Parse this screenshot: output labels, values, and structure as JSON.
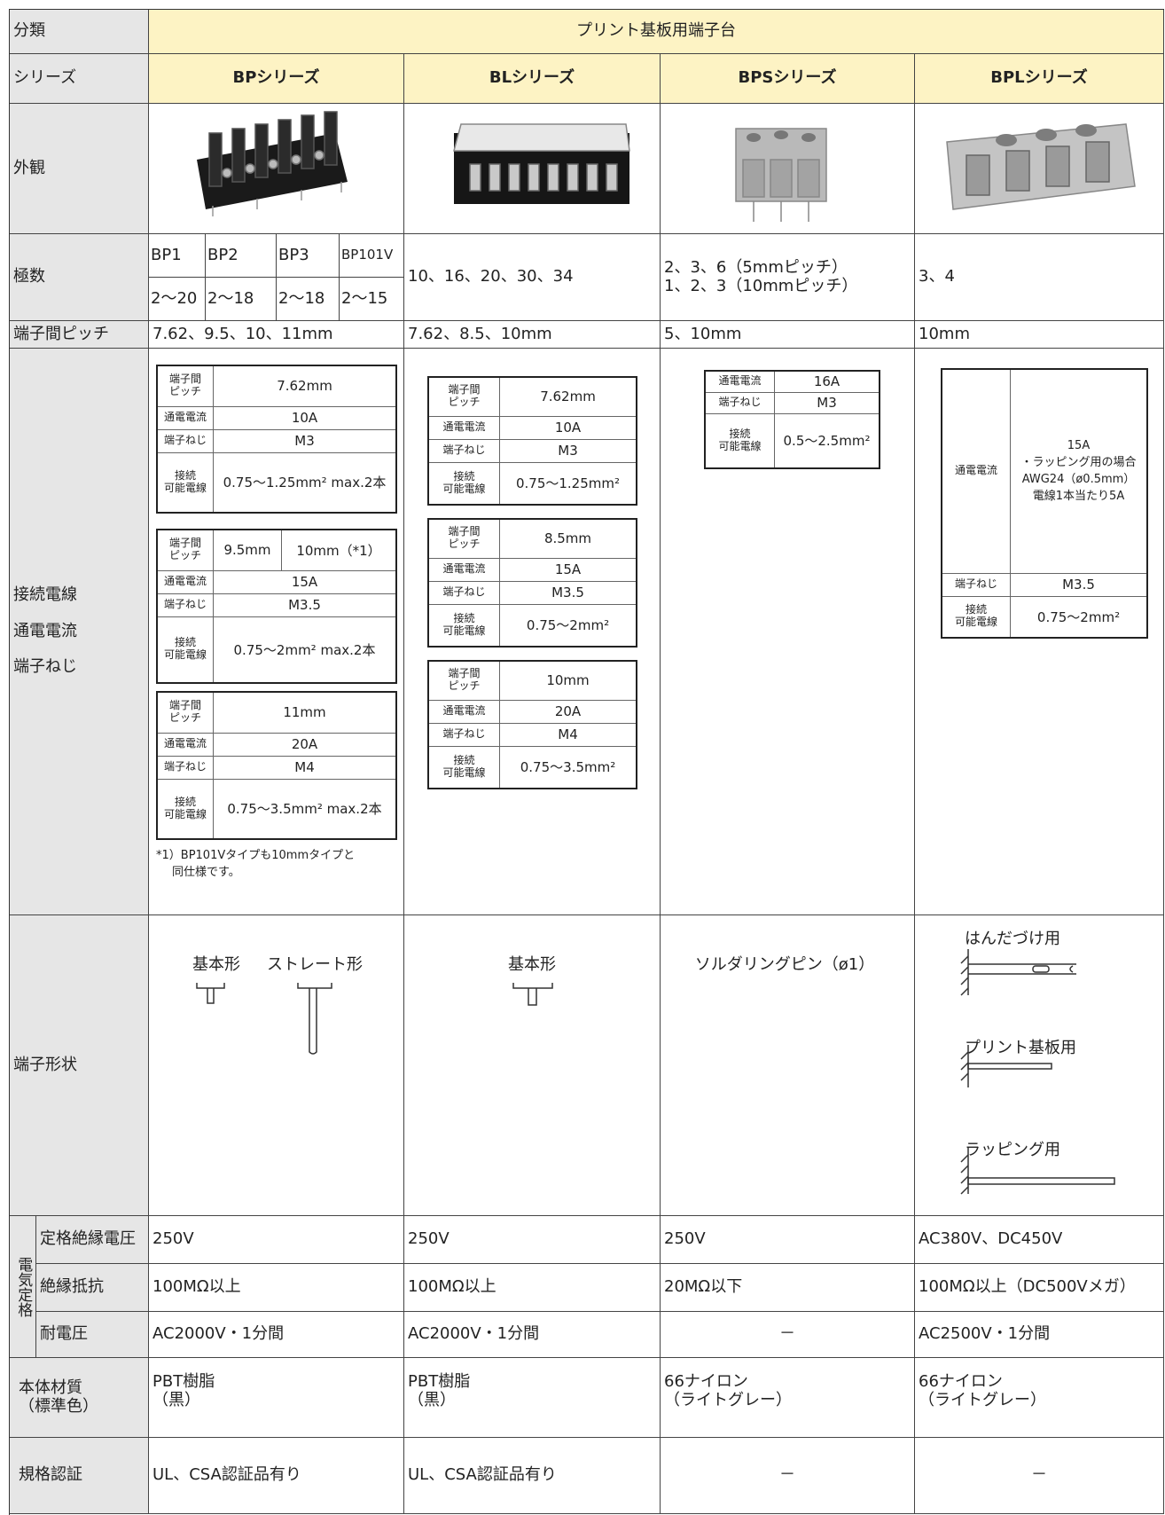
{
  "classification": {
    "label": "分類",
    "value": "プリント基板用端子台"
  },
  "series_row": {
    "label": "シリーズ",
    "values": [
      "BPシリーズ",
      "BLシリーズ",
      "BPSシリーズ",
      "BPLシリーズ"
    ]
  },
  "appearance": {
    "label": "外観"
  },
  "poles": {
    "label": "極数",
    "bp_types": [
      {
        "name": "BP1",
        "range": "2〜20"
      },
      {
        "name": "BP2",
        "range": "2〜18"
      },
      {
        "name": "BP3",
        "range": "2〜18"
      },
      {
        "name": "BP101V",
        "range": "2〜15"
      }
    ],
    "bl": "10、16、20、30、34",
    "bps": [
      "2、3、6（5mmピッチ）",
      "1、2、3（10mmピッチ）"
    ],
    "bpl": "3、4"
  },
  "pitch": {
    "label": "端子間ピッチ",
    "values": [
      "7.62、9.5、10、11mm",
      "7.62、8.5、10mm",
      "5、10mm",
      "10mm"
    ]
  },
  "spec_labels": {
    "pitch": [
      "端子間",
      "ピッチ"
    ],
    "current": "通電電流",
    "screw": "端子ねじ",
    "wire": [
      "接続",
      "可能電線"
    ]
  },
  "wiring": {
    "labels": [
      "接続電線",
      "通電電流",
      "端子ねじ"
    ],
    "bp": [
      {
        "pitch": "7.62mm",
        "current": "10A",
        "screw": "M3",
        "wire": "0.75〜1.25mm² max.2本"
      },
      {
        "pitch": [
          "9.5mm",
          "10mm（*1）"
        ],
        "current": "15A",
        "screw": "M3.5",
        "wire": "0.75〜2mm² max.2本"
      },
      {
        "pitch": "11mm",
        "current": "20A",
        "screw": "M4",
        "wire": "0.75〜3.5mm² max.2本"
      }
    ],
    "bp_note": [
      "*1）BP101Vタイプも10mmタイプと",
      "同仕様です。"
    ],
    "bl": [
      {
        "pitch": "7.62mm",
        "current": "10A",
        "screw": "M3",
        "wire": "0.75〜1.25mm²"
      },
      {
        "pitch": "8.5mm",
        "current": "15A",
        "screw": "M3.5",
        "wire": "0.75〜2mm²"
      },
      {
        "pitch": "10mm",
        "current": "20A",
        "screw": "M4",
        "wire": "0.75〜3.5mm²"
      }
    ],
    "bps": {
      "current": "16A",
      "screw": "M3",
      "wire": "0.5〜2.5mm²"
    },
    "bpl": {
      "current": [
        "15A",
        "・ラッピング用の場合",
        "AWG24（ø0.5mm）",
        "電線1本当たり5A"
      ],
      "screw": "M3.5",
      "wire": "0.75〜2mm²"
    }
  },
  "terminal_shape": {
    "label": "端子形状",
    "bp": [
      "基本形",
      "ストレート形"
    ],
    "bl": "基本形",
    "bps": "ソルダリングピン（ø1）",
    "bpl": [
      "はんだづけ用",
      "プリント基板用",
      "ラッピング用"
    ]
  },
  "electrical": {
    "label": "電気定格",
    "rows": [
      {
        "label": "定格絶縁電圧",
        "values": [
          "250V",
          "250V",
          "250V",
          "AC380V、DC450V"
        ]
      },
      {
        "label": "絶縁抵抗",
        "values": [
          "100MΩ以上",
          "100MΩ以上",
          "20MΩ以下",
          "100MΩ以上（DC500Vメガ）"
        ]
      },
      {
        "label": "耐電圧",
        "values": [
          "AC2000V・1分間",
          "AC2000V・1分間",
          "－",
          "AC2500V・1分間"
        ]
      }
    ]
  },
  "material": {
    "label": [
      "本体材質",
      "（標準色）"
    ],
    "values": [
      [
        "PBT樹脂",
        "（黒）"
      ],
      [
        "PBT樹脂",
        "（黒）"
      ],
      [
        "66ナイロン",
        "（ライトグレー）"
      ],
      [
        "66ナイロン",
        "（ライトグレー）"
      ]
    ]
  },
  "certification": {
    "label": "規格認証",
    "values": [
      "UL、CSA認証品有り",
      "UL、CSA認証品有り",
      "－",
      "－"
    ]
  }
}
